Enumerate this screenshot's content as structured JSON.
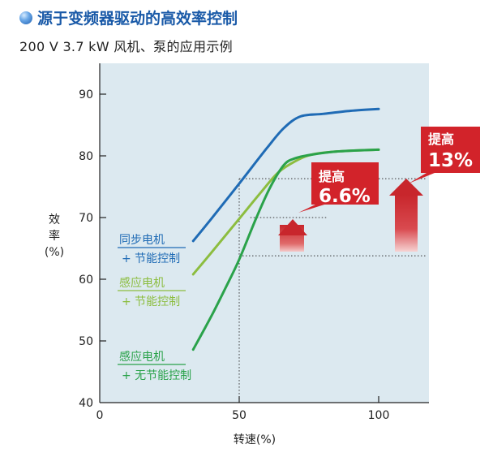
{
  "header": {
    "title": "源于变频器驱动的高效率控制",
    "subtitle": "200 V  3.7 kW   风机、泵的应用示例"
  },
  "chart_data": {
    "type": "line",
    "ylabel": [
      "效",
      "率",
      "(%)"
    ],
    "xlabel": "转速(%)",
    "xlim": [
      0,
      118
    ],
    "ylim": [
      40,
      95
    ],
    "x_ticks": [
      0,
      50,
      100
    ],
    "y_ticks": [
      40,
      50,
      60,
      70,
      80,
      90
    ],
    "series": [
      {
        "name_lines": [
          "同步电机",
          "+ 节能控制"
        ],
        "color": "#1f6bb5",
        "points": [
          [
            33.5,
            66.2
          ],
          [
            40,
            69.8
          ],
          [
            50,
            75.5
          ],
          [
            60,
            81.3
          ],
          [
            66,
            84.5
          ],
          [
            72,
            86.4
          ],
          [
            80,
            86.8
          ],
          [
            90,
            87.3
          ],
          [
            100,
            87.6
          ]
        ]
      },
      {
        "name_lines": [
          "感应电机",
          "+ 节能控制"
        ],
        "color": "#8cbd3f",
        "points": [
          [
            33.5,
            60.8
          ],
          [
            40,
            64.3
          ],
          [
            50,
            69.8
          ],
          [
            58,
            74.2
          ],
          [
            64,
            77.3
          ],
          [
            70,
            79.1
          ],
          [
            76,
            80.2
          ],
          [
            85,
            80.7
          ],
          [
            100,
            81.0
          ]
        ]
      },
      {
        "name_lines": [
          "感应电机",
          "+ 无节能控制"
        ],
        "color": "#2aa24a",
        "points": [
          [
            33.5,
            48.6
          ],
          [
            40,
            54.0
          ],
          [
            45,
            58.5
          ],
          [
            50,
            63.2
          ],
          [
            56,
            69.8
          ],
          [
            61,
            74.8
          ],
          [
            66,
            78.5
          ],
          [
            70,
            79.6
          ],
          [
            76,
            80.2
          ],
          [
            85,
            80.7
          ],
          [
            100,
            81.0
          ]
        ]
      }
    ],
    "annotations": [
      {
        "label": "提高",
        "value": "6.6%"
      },
      {
        "label": "提高",
        "value": "13%"
      }
    ]
  }
}
